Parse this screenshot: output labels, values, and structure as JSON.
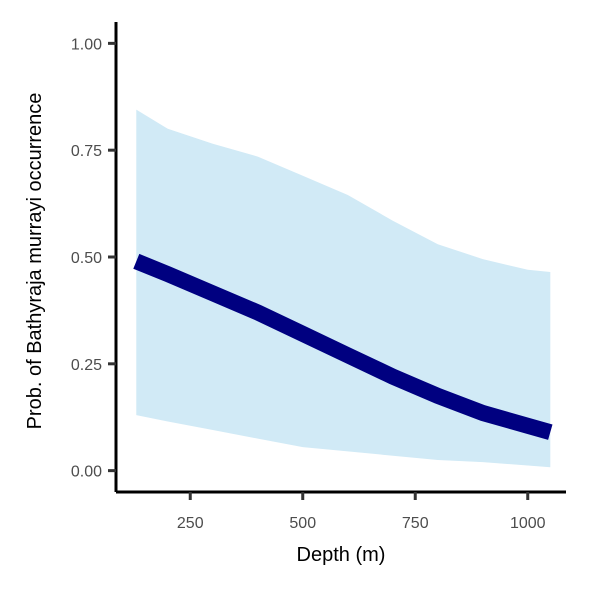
{
  "chart_data": {
    "type": "line",
    "title": "",
    "xlabel": "Depth (m)",
    "ylabel": "Prob. of  Bathyraja murrayi  occurrence",
    "xlim": [
      85,
      1085
    ],
    "ylim": [
      -0.05,
      1.05
    ],
    "x_ticks": [
      250,
      500,
      750,
      1000
    ],
    "x_tick_labels": [
      "250",
      "500",
      "750",
      "1000"
    ],
    "y_ticks": [
      0,
      0.25,
      0.5,
      0.75,
      1.0
    ],
    "y_tick_labels": [
      "0.00",
      "0.25",
      "0.50",
      "0.75",
      "1.00"
    ],
    "grid": false,
    "series": [
      {
        "type": "line",
        "color": "#000080",
        "x": [
          130,
          200,
          300,
          400,
          500,
          600,
          700,
          800,
          900,
          1000,
          1050
        ],
        "y": [
          0.49,
          0.46,
          0.415,
          0.37,
          0.32,
          0.27,
          0.22,
          0.175,
          0.135,
          0.105,
          0.09
        ]
      }
    ],
    "band": {
      "color": "#d1eaf6",
      "x": [
        130,
        200,
        300,
        400,
        500,
        600,
        700,
        800,
        900,
        1000,
        1050
      ],
      "upper": [
        0.845,
        0.8,
        0.765,
        0.735,
        0.69,
        0.645,
        0.585,
        0.53,
        0.495,
        0.47,
        0.465
      ],
      "lower": [
        0.13,
        0.115,
        0.095,
        0.075,
        0.055,
        0.045,
        0.035,
        0.025,
        0.02,
        0.012,
        0.008
      ]
    }
  }
}
